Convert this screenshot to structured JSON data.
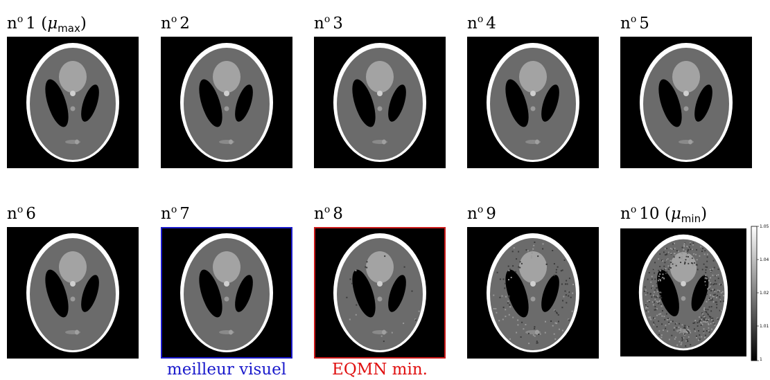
{
  "panels": [
    {
      "num": "1",
      "suffix_pre": " (",
      "mu": "μ",
      "sub": "max",
      "suffix_post": ")"
    },
    {
      "num": "2"
    },
    {
      "num": "3"
    },
    {
      "num": "4"
    },
    {
      "num": "5"
    },
    {
      "num": "6"
    },
    {
      "num": "7",
      "caption": "meilleur visuel",
      "caption_color": "#1a1acc",
      "border_color": "#1a1acc"
    },
    {
      "num": "8",
      "caption": "EQMN min.",
      "caption_color": "#e01010",
      "border_color": "#cc1a1a"
    },
    {
      "num": "9"
    },
    {
      "num": "10",
      "suffix_pre": " (",
      "mu": "μ",
      "sub": "min",
      "suffix_post": ")"
    }
  ],
  "label_prefix": "n",
  "label_sup": "o",
  "colorbar": {
    "ticks": [
      "1.05",
      "1.04",
      "1.02",
      "1.01",
      "1"
    ]
  }
}
